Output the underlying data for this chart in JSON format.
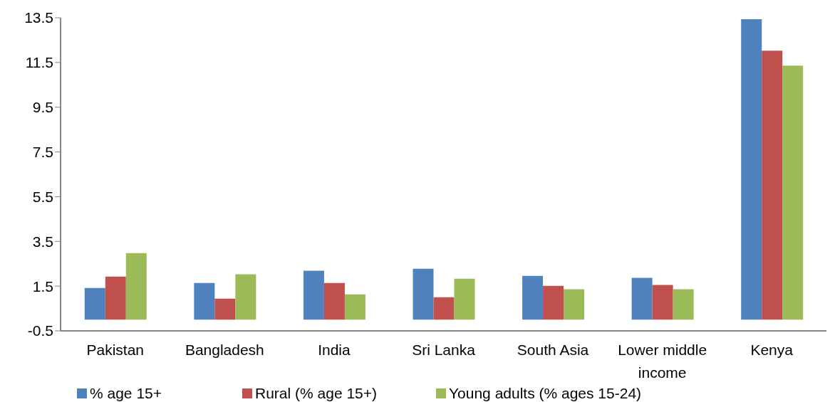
{
  "chart_data": {
    "type": "bar",
    "categories": [
      "Pakistan",
      "Bangladesh",
      "India",
      "Sri Lanka",
      "South Asia",
      "Lower middle income",
      "Kenya"
    ],
    "series": [
      {
        "name": "% age 15+",
        "color": "#4f81bd",
        "values": [
          1.42,
          1.64,
          2.19,
          2.28,
          1.96,
          1.87,
          13.44
        ]
      },
      {
        "name": "Rural (% age 15+)",
        "color": "#c0504d",
        "values": [
          1.93,
          0.94,
          1.64,
          1.0,
          1.51,
          1.55,
          12.03
        ]
      },
      {
        "name": "Young adults (% ages 15-24)",
        "color": "#9bbb59",
        "values": [
          2.98,
          2.03,
          1.13,
          1.83,
          1.36,
          1.36,
          11.36
        ]
      }
    ],
    "ylim": [
      -0.5,
      13.5
    ],
    "yticks": [
      -0.5,
      1.5,
      3.5,
      5.5,
      7.5,
      9.5,
      11.5,
      13.5
    ],
    "grid": false,
    "legend": "bottom"
  }
}
